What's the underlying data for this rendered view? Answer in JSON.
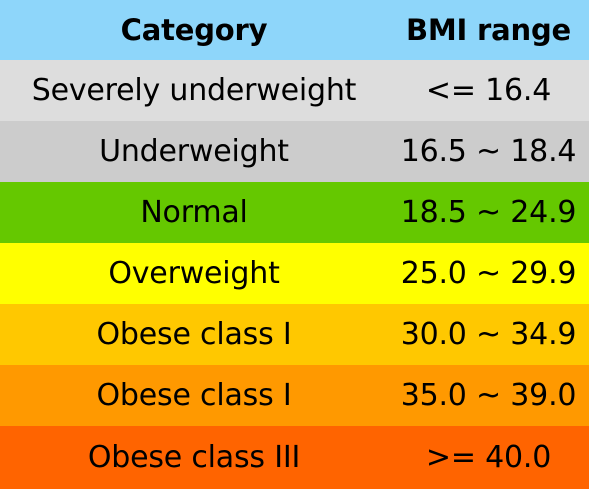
{
  "table": {
    "headers": {
      "category": "Category",
      "range": "BMI range"
    },
    "header_color": "#8ED6FA",
    "rows": [
      {
        "category": "Severely underweight",
        "range": "<= 16.4",
        "color": "#DDDDDD"
      },
      {
        "category": "Underweight",
        "range": "16.5 ~ 18.4",
        "color": "#CCCCCC"
      },
      {
        "category": "Normal",
        "range": "18.5 ~ 24.9",
        "color": "#65C800"
      },
      {
        "category": "Overweight",
        "range": "25.0 ~ 29.9",
        "color": "#FFFF00"
      },
      {
        "category": "Obese class I",
        "range": "30.0 ~ 34.9",
        "color": "#FFC800"
      },
      {
        "category": "Obese class I",
        "range": "35.0 ~ 39.0",
        "color": "#FF9900"
      },
      {
        "category": "Obese class III",
        "range": ">= 40.0",
        "color": "#FF6400"
      }
    ]
  }
}
